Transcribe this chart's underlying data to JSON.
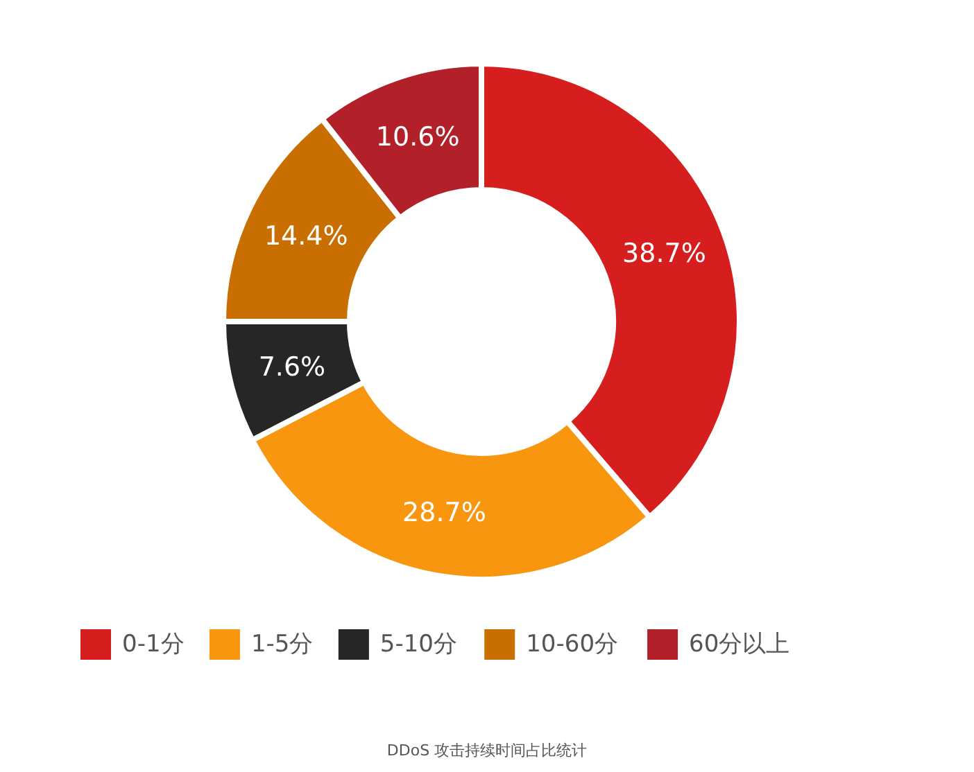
{
  "chart_data": {
    "type": "donut",
    "categories": [
      "0-1分",
      "1-5分",
      "5-10分",
      "10-60分",
      "60分以上"
    ],
    "values": [
      38.7,
      28.7,
      7.6,
      14.4,
      10.6
    ],
    "colors": [
      "#d71e1e",
      "#f9960f",
      "#262626",
      "#c96e00",
      "#b2202a"
    ],
    "value_labels": [
      "38.7%",
      "28.7%",
      "7.6%",
      "14.4%",
      "10.6%"
    ],
    "legend": "bottom",
    "annotations": [
      "DDoS 攻击持续时间占比统计"
    ]
  }
}
